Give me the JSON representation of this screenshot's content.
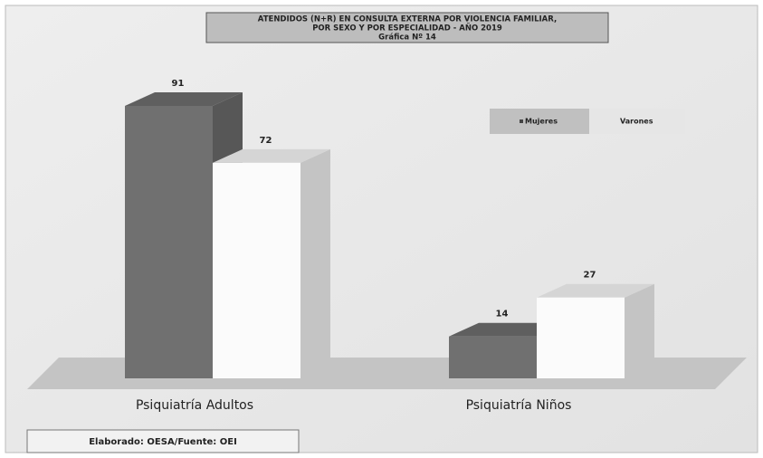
{
  "chart_data": {
    "type": "bar3d",
    "title": [
      "ATENDIDOS (N+R) EN CONSULTA EXTERNA POR VIOLENCIA FAMILIAR,",
      "POR SEXO Y POR ESPECIALIDAD - AÑO 2019"
    ],
    "subtitle": "Gráfica Nº 14",
    "categories": [
      "Psiquiatría Adultos",
      "Psiquiatría Niños"
    ],
    "series": [
      {
        "name": "Mujeres",
        "color": "#707070",
        "values": [
          91,
          14
        ]
      },
      {
        "name": "Varones",
        "color": "#fbfbfb",
        "values": [
          72,
          27
        ]
      }
    ],
    "legend": "upper right",
    "source": "Elaborado: OESA/Fuente: OEI"
  }
}
